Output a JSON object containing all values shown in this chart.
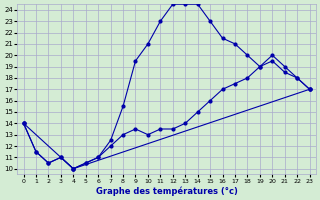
{
  "title": "Graphe des températures (°c)",
  "bg_color": "#d4ecd4",
  "line_color": "#0000aa",
  "xlim": [
    -0.5,
    23.5
  ],
  "ylim": [
    9.5,
    24.5
  ],
  "xticks": [
    0,
    1,
    2,
    3,
    4,
    5,
    6,
    7,
    8,
    9,
    10,
    11,
    12,
    13,
    14,
    15,
    16,
    17,
    18,
    19,
    20,
    21,
    22,
    23
  ],
  "yticks": [
    10,
    11,
    12,
    13,
    14,
    15,
    16,
    17,
    18,
    19,
    20,
    21,
    22,
    23,
    24
  ],
  "curve1_x": [
    0,
    1,
    2,
    3,
    4,
    5,
    6,
    7,
    8,
    9,
    10,
    11,
    12,
    13,
    14,
    15,
    16,
    17,
    18,
    19,
    20,
    21,
    22,
    23
  ],
  "curve1_y": [
    14,
    11.5,
    10.5,
    11,
    10,
    10.5,
    11,
    12.5,
    15.5,
    19.5,
    21,
    23,
    24.5,
    24.5,
    24.5,
    23,
    21.5,
    21,
    20,
    19,
    19.5,
    18.5,
    18,
    17
  ],
  "curve2_x": [
    0,
    1,
    2,
    3,
    4,
    5,
    6,
    7,
    8,
    9,
    10,
    11,
    12,
    13,
    14,
    15,
    16,
    17,
    18,
    19,
    20,
    21,
    22,
    23
  ],
  "curve2_y": [
    14,
    11.5,
    10.5,
    11,
    10,
    10.5,
    11,
    12,
    13,
    13.5,
    13,
    13.5,
    13.5,
    14,
    15,
    16,
    17,
    17.5,
    18,
    19,
    20,
    19,
    18,
    17
  ],
  "curve3_x": [
    0,
    4,
    23
  ],
  "curve3_y": [
    14,
    10,
    17
  ]
}
